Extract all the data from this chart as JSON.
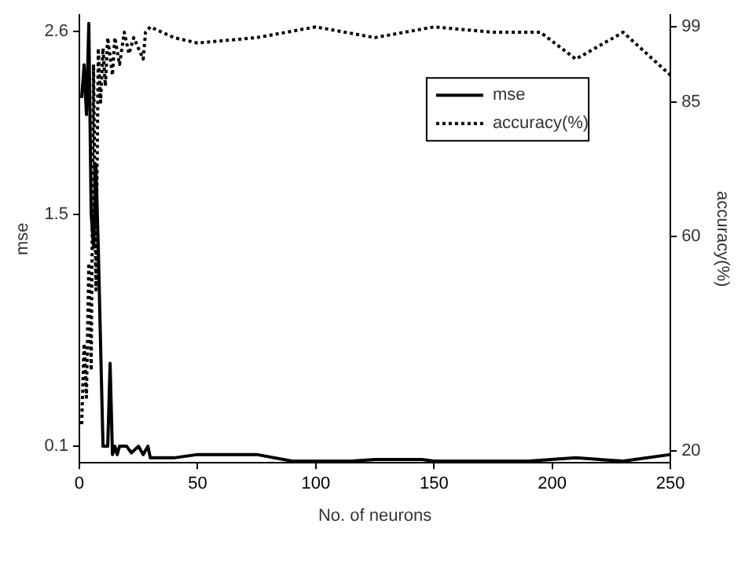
{
  "chart_data": {
    "type": "line",
    "xlabel": "No. of neurons",
    "ylabel": "mse",
    "y2label": "accuracy(%)",
    "xlim": [
      0,
      250
    ],
    "xticks": [
      0,
      50,
      100,
      150,
      200,
      250
    ],
    "ylim": [
      0,
      2.7
    ],
    "yticks": [
      0.1,
      1.5,
      2.6
    ],
    "y2lim": [
      17.8,
      101.2
    ],
    "y2ticks": [
      20,
      60,
      85,
      99
    ],
    "grid": false,
    "legend": "top right",
    "marker": "none",
    "series": [
      {
        "name": "mse",
        "color": "#000000",
        "line_style": "solid",
        "x": [
          1,
          2,
          3,
          4,
          5,
          6,
          7,
          8,
          9,
          10,
          12,
          13,
          14,
          15,
          16,
          17,
          20,
          22,
          25,
          27,
          29,
          30,
          40,
          50,
          75,
          90,
          100,
          115,
          125,
          145,
          150,
          190,
          210,
          230,
          250
        ],
        "values": [
          2.2,
          2.4,
          2.1,
          2.65,
          1.5,
          1.3,
          1.8,
          1.3,
          0.7,
          0.1,
          0.1,
          0.6,
          0.05,
          0.1,
          0.05,
          0.1,
          0.1,
          0.06,
          0.1,
          0.05,
          0.1,
          0.03,
          0.03,
          0.05,
          0.05,
          0.01,
          0.01,
          0.01,
          0.02,
          0.02,
          0.01,
          0.01,
          0.03,
          0.01,
          0.05
        ]
      },
      {
        "name": "accuracy(%)",
        "color": "#000000",
        "line_style": "dotted",
        "axis": "y2",
        "x": [
          1,
          2,
          3,
          4,
          5,
          6,
          7,
          8,
          9,
          10,
          11,
          12,
          14,
          15,
          17,
          19,
          21,
          23,
          25,
          27,
          28,
          30,
          40,
          50,
          75,
          100,
          125,
          150,
          175,
          195,
          210,
          230,
          250
        ],
        "values": [
          25,
          40,
          30,
          55,
          35,
          92,
          50,
          95,
          85,
          95,
          88,
          97,
          90,
          97,
          92,
          98,
          94,
          97,
          95,
          93,
          98,
          99,
          97,
          96,
          97,
          99,
          97,
          99,
          98,
          98,
          93,
          98,
          90
        ]
      }
    ]
  }
}
